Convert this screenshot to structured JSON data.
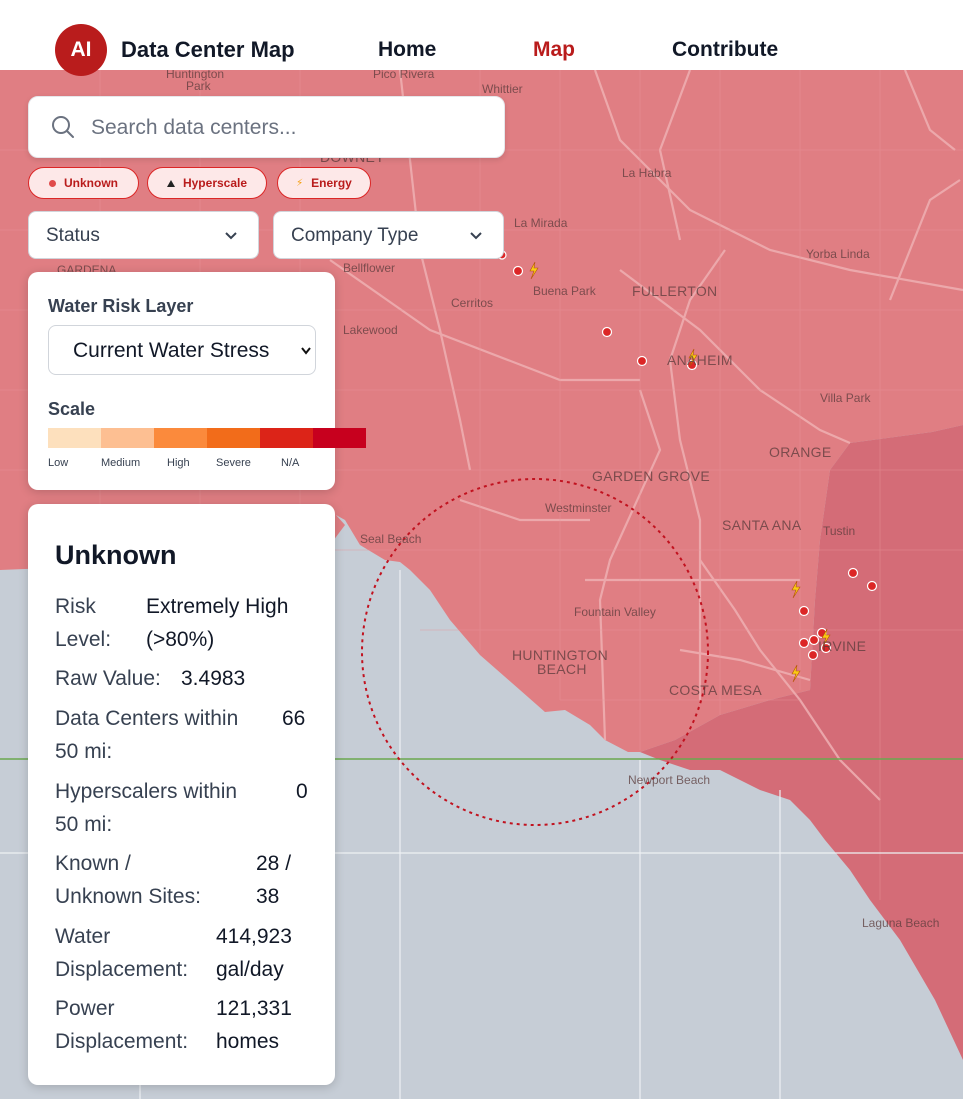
{
  "header": {
    "logo_text": "AI",
    "brand": "Data Center Map",
    "nav": [
      {
        "label": "Home",
        "active": false
      },
      {
        "label": "Map",
        "active": true
      },
      {
        "label": "Contribute",
        "active": false
      }
    ]
  },
  "search": {
    "placeholder": "Search data centers..."
  },
  "chips": [
    {
      "label": "Unknown",
      "icon": "dot-icon"
    },
    {
      "label": "Hyperscale",
      "icon": "triangle-icon"
    },
    {
      "label": "Energy",
      "icon": "lightning-icon"
    }
  ],
  "filters": {
    "status": "Status",
    "company_type": "Company Type"
  },
  "water_panel": {
    "title": "Water Risk Layer",
    "layer_value": "Current Water Stress",
    "scale_title": "Scale",
    "scale_labels": [
      "Low",
      "Medium",
      "High",
      "Severe",
      "N/A"
    ],
    "scale_colors": [
      "#fde0bd",
      "#fdbf92",
      "#fb8a3c",
      "#f26c1a",
      "#dc2418",
      "#c7001e"
    ]
  },
  "info_panel": {
    "title": "Unknown",
    "risk_label_1": "Risk",
    "risk_label_2": "Level:",
    "risk_value_1": "Extremely High",
    "risk_value_2": "(>80%)",
    "raw_label": "Raw Value:",
    "raw_value": "3.4983",
    "dc_label_1": "Data Centers within",
    "dc_label_2": "50 mi:",
    "dc_value": "66",
    "hs_label_1": "Hyperscalers within",
    "hs_label_2": "50 mi:",
    "hs_value": "0",
    "ku_label_1": "Known /",
    "ku_label_2": "Unknown Sites:",
    "ku_value_1": "28 /",
    "ku_value_2": "38",
    "wd_label_1": "Water",
    "wd_label_2": "Displacement:",
    "wd_value_1": "414,923",
    "wd_value_2": "gal/day",
    "pd_label_1": "Power",
    "pd_label_2": "Displacement:",
    "pd_value_1": "121,331",
    "pd_value_2": "homes"
  },
  "map": {
    "labels": {
      "huntington_park_1": "Huntington",
      "huntington_park_2": "Park",
      "pico_rivera": "Pico Rivera",
      "whittier": "Whittier",
      "downey": "DOWNEY",
      "la_habra": "La Habra",
      "la_mirada": "La Mirada",
      "yorba_linda": "Yorba Linda",
      "gardena": "GARDENA",
      "bellflower": "Bellflower",
      "buena_park": "Buena Park",
      "fullerton": "FULLERTON",
      "cerritos": "Cerritos",
      "lakewood": "Lakewood",
      "anaheim": "ANAHEIM",
      "villa_park": "Villa Park",
      "orange": "ORANGE",
      "garden_grove": "GARDEN GROVE",
      "westminster": "Westminster",
      "santa_ana": "SANTA ANA",
      "tustin": "Tustin",
      "seal_beach": "Seal Beach",
      "fountain_valley": "Fountain Valley",
      "irvine": "IRVINE",
      "huntington_beach_1": "HUNTINGTON",
      "huntington_beach_2": "BEACH",
      "costa_mesa": "COSTA MESA",
      "newport_beach": "Newport Beach",
      "laguna_beach": "Laguna Beach"
    }
  }
}
